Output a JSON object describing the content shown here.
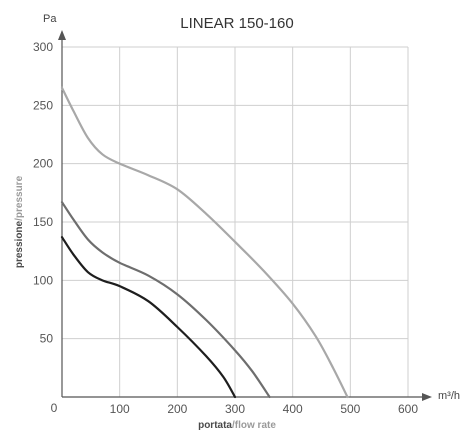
{
  "chart_data": {
    "type": "line",
    "title": "LINEAR 150-160",
    "x_unit": "m³/h",
    "y_unit": "Pa",
    "xlabel_primary": "portata",
    "xlabel_secondary": "/flow rate",
    "ylabel_primary": "pressione",
    "ylabel_secondary": "/pressure",
    "origin_label": "0",
    "xlim": [
      0,
      600
    ],
    "ylim": [
      0,
      300
    ],
    "x_ticks": [
      100,
      200,
      300,
      400,
      500,
      600
    ],
    "y_ticks": [
      50,
      100,
      150,
      200,
      250,
      300
    ],
    "grid": true,
    "series": [
      {
        "color": "#a8a8a8",
        "points": [
          [
            0,
            265
          ],
          [
            20,
            245
          ],
          [
            45,
            222
          ],
          [
            70,
            208
          ],
          [
            100,
            200
          ],
          [
            150,
            190
          ],
          [
            200,
            178
          ],
          [
            250,
            157
          ],
          [
            300,
            133
          ],
          [
            350,
            108
          ],
          [
            400,
            80
          ],
          [
            440,
            52
          ],
          [
            470,
            25
          ],
          [
            495,
            0
          ]
        ]
      },
      {
        "color": "#6e6e6e",
        "points": [
          [
            0,
            167
          ],
          [
            20,
            152
          ],
          [
            45,
            135
          ],
          [
            70,
            124
          ],
          [
            100,
            115
          ],
          [
            150,
            104
          ],
          [
            200,
            88
          ],
          [
            250,
            66
          ],
          [
            300,
            40
          ],
          [
            330,
            22
          ],
          [
            360,
            0
          ]
        ]
      },
      {
        "color": "#1e1e1e",
        "points": [
          [
            0,
            137
          ],
          [
            20,
            122
          ],
          [
            45,
            107
          ],
          [
            70,
            100
          ],
          [
            100,
            95
          ],
          [
            150,
            82
          ],
          [
            200,
            60
          ],
          [
            250,
            35
          ],
          [
            280,
            17
          ],
          [
            300,
            0
          ]
        ]
      }
    ]
  }
}
